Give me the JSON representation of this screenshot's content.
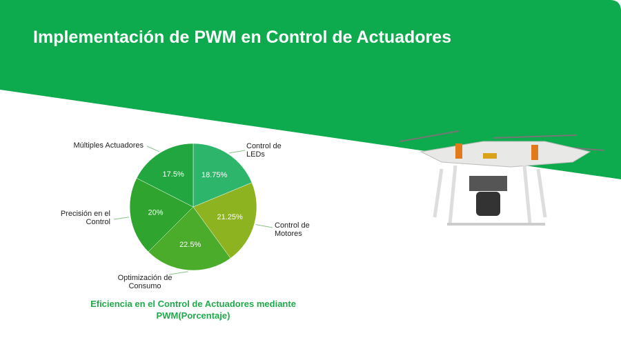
{
  "slide_title": "Implementación de PWM en Control de Actuadores",
  "chart_data": {
    "type": "pie",
    "title": "Eficiencia en el Control de Actuadores mediante PWM(Porcentaje)",
    "categories": [
      "Control de LEDs",
      "Control de Motores",
      "Optimización de Consumo",
      "Precisión en el Control",
      "Múltiples Actuadores"
    ],
    "values": [
      18.75,
      21.25,
      22.5,
      20,
      17.5
    ],
    "value_labels": [
      "18.75%",
      "21.25%",
      "22.5%",
      "20%",
      "17.5%"
    ],
    "colors": [
      "#2db56b",
      "#8db321",
      "#4aac2a",
      "#2fa52f",
      "#22a640"
    ]
  }
}
